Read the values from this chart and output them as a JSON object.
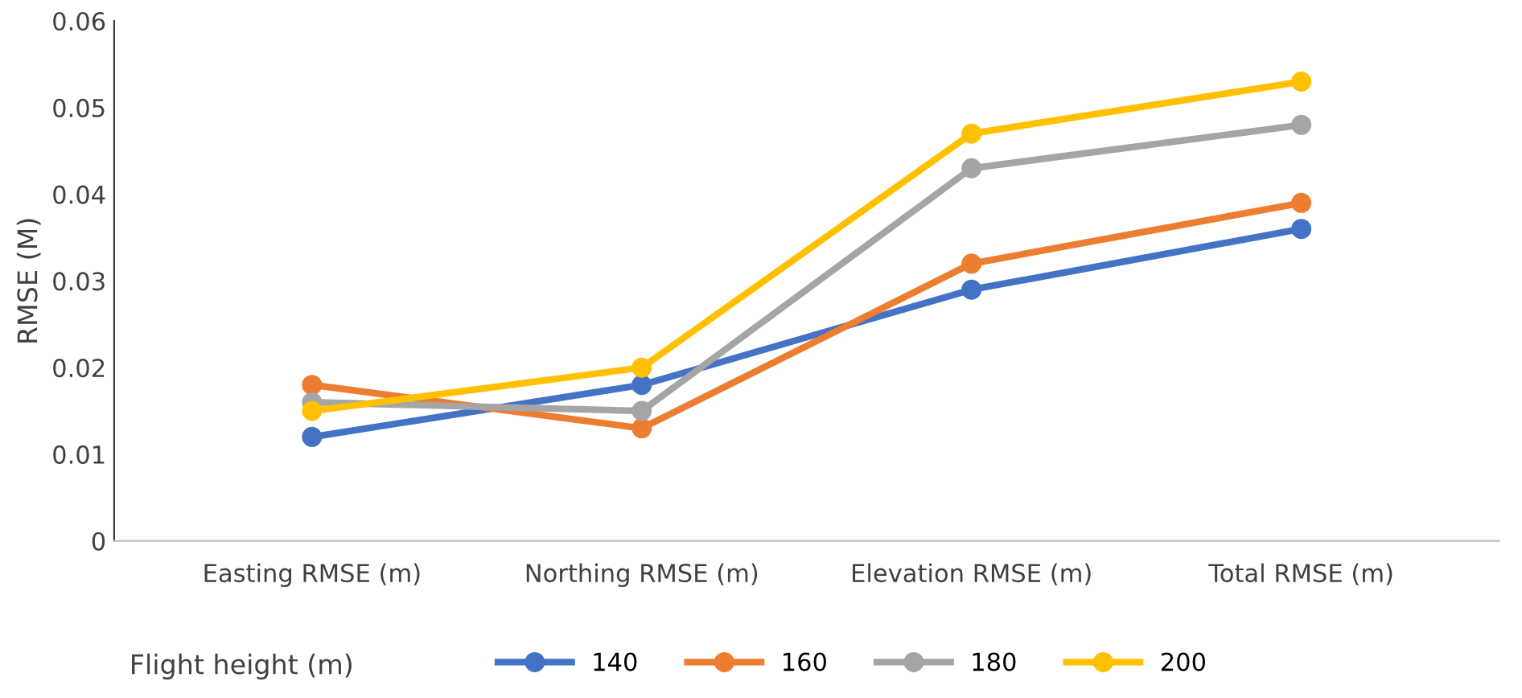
{
  "chart_data": {
    "type": "line",
    "ylabel": "RMSE (M)",
    "legend_title": "Flight height (m)",
    "categories": [
      "Easting RMSE (m)",
      "Northing RMSE (m)",
      "Elevation RMSE (m)",
      "Total RMSE (m)"
    ],
    "series": [
      {
        "name": "140",
        "color": "#4472c4",
        "values": [
          0.012,
          0.018,
          0.029,
          0.036
        ]
      },
      {
        "name": "160",
        "color": "#ed7d31",
        "values": [
          0.018,
          0.013,
          0.032,
          0.039
        ]
      },
      {
        "name": "180",
        "color": "#a5a5a5",
        "values": [
          0.016,
          0.015,
          0.043,
          0.048
        ]
      },
      {
        "name": "200",
        "color": "#ffc000",
        "values": [
          0.015,
          0.02,
          0.047,
          0.053
        ]
      }
    ],
    "ylim": [
      0,
      0.06
    ],
    "yticks": [
      0,
      0.01,
      0.02,
      0.03,
      0.04,
      0.05,
      0.06
    ],
    "grid": false,
    "legend": "bottom",
    "marker": "circle",
    "line_style": "solid"
  }
}
